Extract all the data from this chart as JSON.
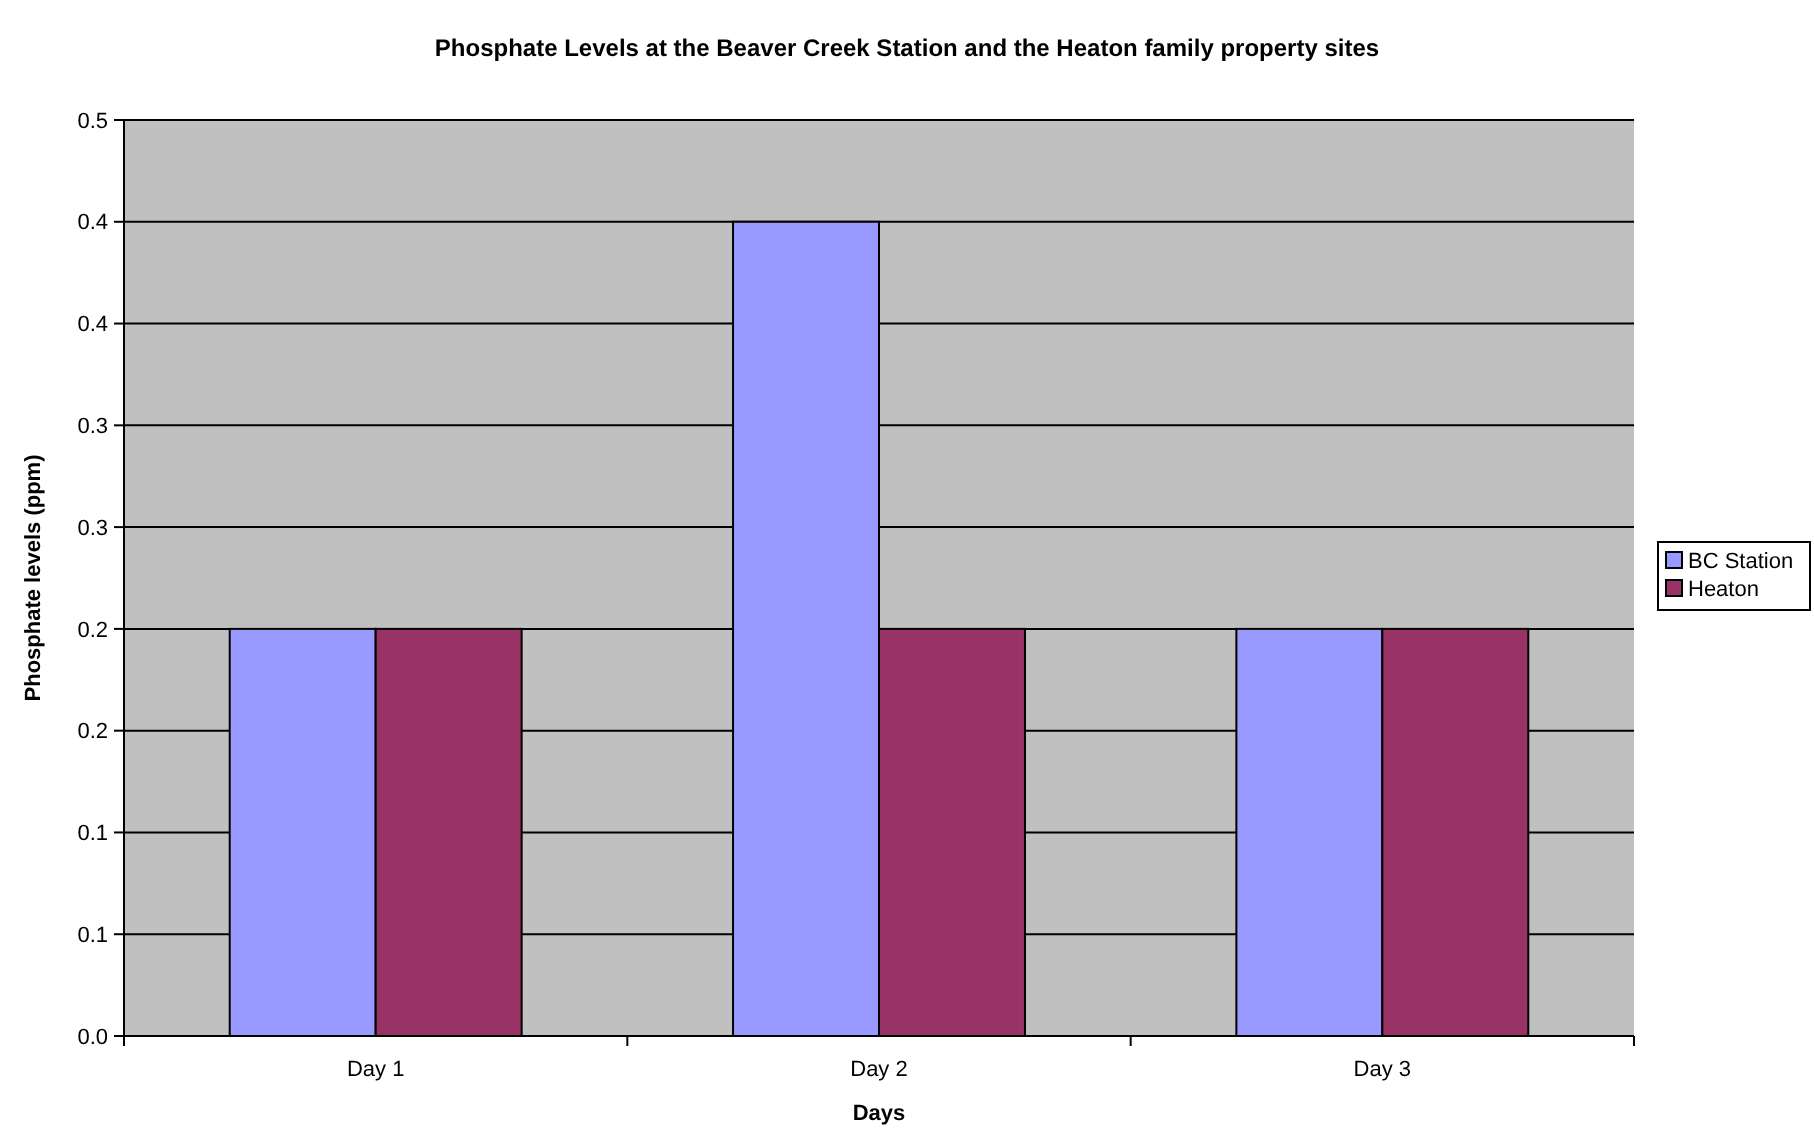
{
  "chart_data": {
    "type": "bar",
    "title": "Phosphate Levels at the Beaver Creek Station and the Heaton family property sites",
    "xlabel": "Days",
    "ylabel": "Phosphate levels (ppm)",
    "categories": [
      "Day 1",
      "Day 2",
      "Day 3"
    ],
    "series": [
      {
        "name": "BC Station",
        "color": "#9999ff",
        "values": [
          0.2,
          0.4,
          0.2
        ]
      },
      {
        "name": "Heaton",
        "color": "#993366",
        "values": [
          0.2,
          0.2,
          0.2
        ]
      }
    ],
    "ylim": [
      0,
      0.45
    ],
    "yticks": [
      {
        "value": 0,
        "label": "0.0"
      },
      {
        "value": 0.05,
        "label": "0.1"
      },
      {
        "value": 0.1,
        "label": "0.1"
      },
      {
        "value": 0.15,
        "label": "0.2"
      },
      {
        "value": 0.2,
        "label": "0.2"
      },
      {
        "value": 0.25,
        "label": "0.3"
      },
      {
        "value": 0.3,
        "label": "0.3"
      },
      {
        "value": 0.35,
        "label": "0.4"
      },
      {
        "value": 0.4,
        "label": "0.4"
      },
      {
        "value": 0.45,
        "label": "0.5"
      }
    ],
    "grid": "y",
    "legend": "right"
  }
}
